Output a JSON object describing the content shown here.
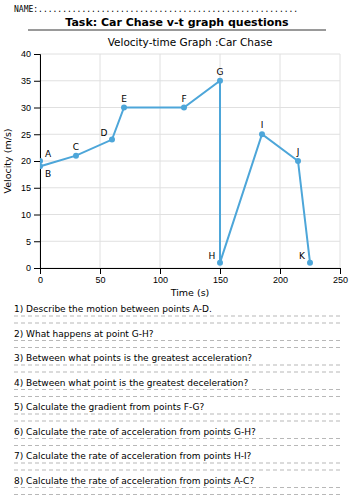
{
  "name_label": "NAME:......................................................",
  "task_title": "Task: Car Chase v-t graph questions",
  "questions": [
    "1)  Describe the motion between points A-D.",
    "2)  What happens at point G-H?",
    "3)  Between what points is the greatest acceleration?",
    "4)  Between what point is the greatest deceleration?",
    "5)  Calculate the gradient from points F-G?",
    "6)  Calculate the rate of acceleration from points G-H?",
    "7)  Calculate the rate of acceleration from points H-I?",
    "8)  Calculate the rate of acceleration from points A-C?"
  ],
  "chart_data": {
    "type": "line",
    "title": "Velocity-time Graph  :Car Chase",
    "x_label": "Time (s)",
    "y_label": "Velocity (m/s)",
    "x": [
      0,
      0,
      30,
      60,
      70,
      120,
      150,
      150,
      185,
      215,
      225
    ],
    "series": [
      {
        "name": "Car Chase",
        "color": "#4da6d9",
        "marker": "circle",
        "values": [
          20,
          19,
          21,
          24,
          30,
          30,
          35,
          1,
          25,
          20,
          1
        ],
        "point_labels": [
          "A",
          "B",
          "C",
          "D",
          "E",
          "F",
          "G",
          "H",
          "I",
          "J",
          "K"
        ]
      }
    ],
    "xlim": [
      0,
      250
    ],
    "ylim": [
      0,
      40
    ],
    "xticks": [
      0,
      50,
      100,
      150,
      200,
      250
    ],
    "yticks": [
      0,
      5,
      10,
      15,
      20,
      25,
      30,
      35,
      40
    ],
    "grid": true
  }
}
